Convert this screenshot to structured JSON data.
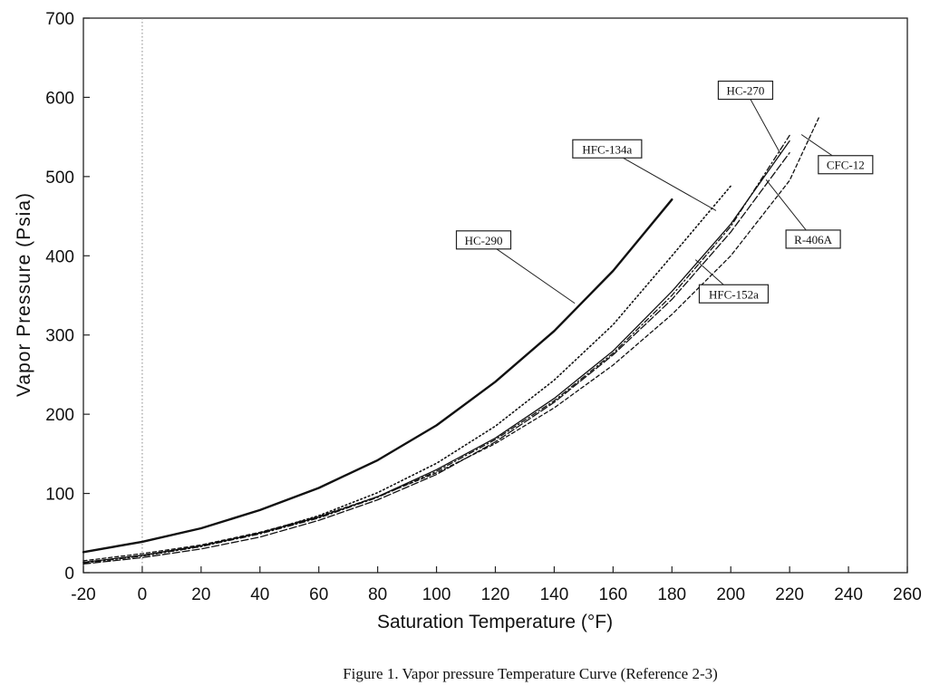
{
  "chart_data": {
    "type": "line",
    "xlabel": "Saturation Temperature (°F)",
    "ylabel": "Vapor Pressure (Psia)",
    "xlim": [
      -20,
      260
    ],
    "ylim": [
      0,
      700
    ],
    "x_ticks": [
      -20,
      0,
      20,
      40,
      60,
      80,
      100,
      120,
      140,
      160,
      180,
      200,
      220,
      240,
      260
    ],
    "y_ticks": [
      0,
      100,
      200,
      300,
      400,
      500,
      600,
      700
    ],
    "grid": false,
    "reference_line_x": 0,
    "caption": "Figure 1. Vapor pressure Temperature Curve (Reference 2-3)",
    "series": [
      {
        "name": "HC-290",
        "style": "solid-heavy",
        "x": [
          -20,
          0,
          20,
          40,
          60,
          80,
          100,
          120,
          140,
          160,
          180
        ],
        "y": [
          26,
          39,
          56,
          79,
          107,
          142,
          186,
          241,
          305,
          381,
          471
        ]
      },
      {
        "name": "HFC-134a",
        "style": "dotted",
        "x": [
          -20,
          0,
          20,
          40,
          60,
          80,
          100,
          120,
          140,
          160,
          180,
          200
        ],
        "y": [
          13,
          21,
          33,
          50,
          72,
          101,
          138,
          185,
          243,
          313,
          400,
          488
        ]
      },
      {
        "name": "HC-270",
        "style": "solid-thin",
        "x": [
          -20,
          0,
          20,
          40,
          60,
          80,
          100,
          120,
          140,
          160,
          180,
          200,
          220
        ],
        "y": [
          13,
          22,
          34,
          50,
          70,
          96,
          130,
          170,
          220,
          280,
          355,
          440,
          545
        ]
      },
      {
        "name": "R-406A",
        "style": "dashdot",
        "x": [
          -20,
          0,
          20,
          40,
          60,
          80,
          100,
          120,
          140,
          160,
          180,
          200,
          220
        ],
        "y": [
          12,
          21,
          33,
          49,
          69,
          95,
          128,
          168,
          217,
          277,
          350,
          437,
          552
        ]
      },
      {
        "name": "CFC-12",
        "style": "dashed",
        "x": [
          -20,
          0,
          20,
          40,
          60,
          80,
          100,
          120,
          140,
          160,
          180,
          200,
          220,
          230
        ],
        "y": [
          15,
          24,
          35,
          51,
          71,
          96,
          126,
          163,
          208,
          262,
          326,
          400,
          495,
          575
        ]
      },
      {
        "name": "HFC-152a",
        "style": "dash-long",
        "x": [
          -20,
          0,
          20,
          40,
          60,
          80,
          100,
          120,
          140,
          160,
          180,
          200,
          220
        ],
        "y": [
          11,
          19,
          30,
          45,
          66,
          92,
          124,
          165,
          215,
          275,
          345,
          430,
          530
        ]
      }
    ],
    "annotations": [
      {
        "label": "HC-290",
        "series": "HC-290",
        "box_xy": [
          116,
          420
        ],
        "point_xy": [
          147,
          340
        ]
      },
      {
        "label": "HFC-134a",
        "series": "HFC-134a",
        "box_xy": [
          158,
          535
        ],
        "point_xy": [
          195,
          457
        ]
      },
      {
        "label": "HC-270",
        "series": "HC-270",
        "box_xy": [
          205,
          609
        ],
        "point_xy": [
          217,
          528
        ]
      },
      {
        "label": "CFC-12",
        "series": "CFC-12",
        "box_xy": [
          239,
          515
        ],
        "point_xy": [
          224,
          553
        ]
      },
      {
        "label": "R-406A",
        "series": "R-406A",
        "box_xy": [
          228,
          421
        ],
        "point_xy": [
          212,
          496
        ]
      },
      {
        "label": "HFC-152a",
        "series": "HFC-152a",
        "box_xy": [
          201,
          352
        ],
        "point_xy": [
          188,
          395
        ]
      }
    ]
  }
}
